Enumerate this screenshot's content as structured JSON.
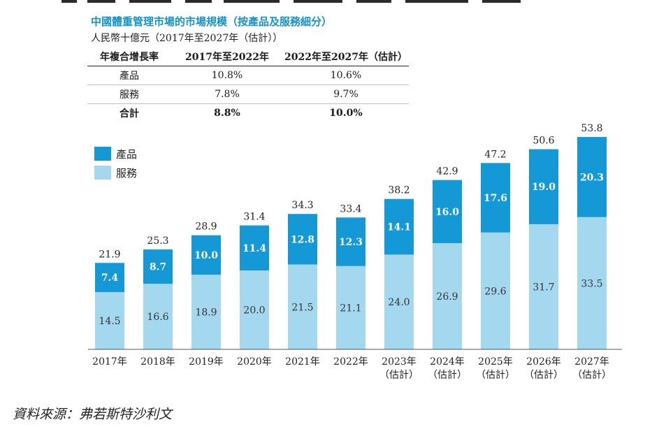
{
  "page": {
    "title": "中國體重管理市場的市場規模（按產品及服務細分）",
    "unit": "人民幣十億元（2017年至2027年（估計））",
    "source": "資料來源：弗若斯特沙利文"
  },
  "cagr_table": {
    "headers": [
      "年複合增長率",
      "2017年至2022年",
      "2022年至2027年（估計）"
    ],
    "rows": [
      {
        "label": "產品",
        "v1": "10.8%",
        "v2": "10.6%"
      },
      {
        "label": "服務",
        "v1": "7.8%",
        "v2": "9.7%"
      },
      {
        "label": "合計",
        "v1": "8.8%",
        "v2": "10.0%",
        "total": true
      }
    ]
  },
  "colors": {
    "title": "#1592c7",
    "products": "#1599d6",
    "services": "#a3d8ef"
  },
  "chart_data": {
    "type": "bar",
    "stacked": true,
    "categories": [
      [
        "2017年"
      ],
      [
        "2018年"
      ],
      [
        "2019年"
      ],
      [
        "2020年"
      ],
      [
        "2021年"
      ],
      [
        "2022年"
      ],
      [
        "2023年",
        "（估計）"
      ],
      [
        "2024年",
        "（估計）"
      ],
      [
        "2025年",
        "（估計）"
      ],
      [
        "2026年",
        "（估計）"
      ],
      [
        "2027年",
        "（估計）"
      ]
    ],
    "series": [
      {
        "name": "服務",
        "color": "#a3d8ef",
        "values": [
          14.5,
          16.6,
          18.9,
          20.0,
          21.5,
          21.1,
          24.0,
          26.9,
          29.6,
          31.7,
          33.5
        ]
      },
      {
        "name": "產品",
        "color": "#1599d6",
        "values": [
          7.4,
          8.7,
          10.0,
          11.4,
          12.8,
          12.3,
          14.1,
          16.0,
          17.6,
          19.0,
          20.3
        ]
      }
    ],
    "totals": [
      21.9,
      25.3,
      28.9,
      31.4,
      34.3,
      33.4,
      38.2,
      42.9,
      47.2,
      50.6,
      53.8
    ],
    "legend": {
      "placement": "top-left",
      "items": [
        "產品",
        "服務"
      ]
    },
    "grid": false,
    "ylim": [
      0,
      60
    ]
  }
}
